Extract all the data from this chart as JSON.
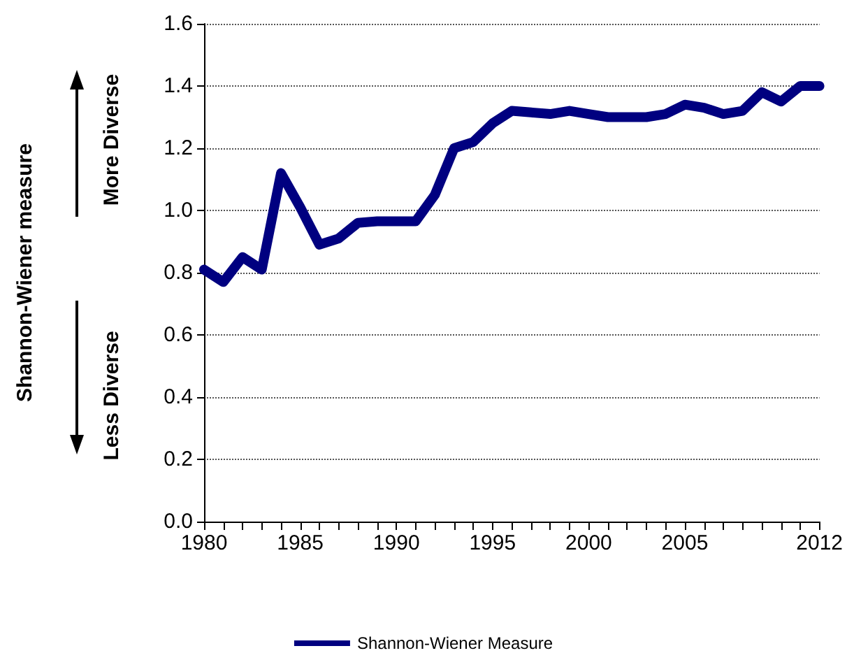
{
  "chart_data": {
    "type": "line",
    "annotations": [
      "Shannon-Wiener measure",
      "More Diverse",
      "Less Diverse"
    ],
    "x": [
      1980,
      1981,
      1982,
      1983,
      1984,
      1985,
      1986,
      1987,
      1988,
      1989,
      1990,
      1991,
      1992,
      1993,
      1994,
      1995,
      1996,
      1997,
      1998,
      1999,
      2000,
      2001,
      2002,
      2003,
      2004,
      2005,
      2006,
      2007,
      2008,
      2009,
      2010,
      2011,
      2012
    ],
    "series": [
      {
        "name": "Shannon-Wiener Measure",
        "color": "#000080",
        "values": [
          0.81,
          0.77,
          0.85,
          0.81,
          1.12,
          1.01,
          0.89,
          0.91,
          0.96,
          0.965,
          0.965,
          0.965,
          1.05,
          1.2,
          1.22,
          1.28,
          1.32,
          1.315,
          1.31,
          1.32,
          1.31,
          1.3,
          1.3,
          1.3,
          1.31,
          1.34,
          1.33,
          1.31,
          1.32,
          1.38,
          1.35,
          1.4,
          1.4
        ]
      }
    ],
    "xlim": [
      1980,
      2012
    ],
    "xticks": [
      1980,
      {
        "value": 1981,
        "label": null
      },
      {
        "value": 1982,
        "label": null
      },
      {
        "value": 1983,
        "label": null
      },
      {
        "value": 1984,
        "label": null
      },
      1985,
      {
        "value": 1986,
        "label": null
      },
      {
        "value": 1987,
        "label": null
      },
      {
        "value": 1988,
        "label": null
      },
      {
        "value": 1989,
        "label": null
      },
      1990,
      {
        "value": 1991,
        "label": null
      },
      {
        "value": 1992,
        "label": null
      },
      {
        "value": 1993,
        "label": null
      },
      {
        "value": 1994,
        "label": null
      },
      1995,
      {
        "value": 1996,
        "label": null
      },
      {
        "value": 1997,
        "label": null
      },
      {
        "value": 1998,
        "label": null
      },
      {
        "value": 1999,
        "label": null
      },
      2000,
      {
        "value": 2001,
        "label": null
      },
      {
        "value": 2002,
        "label": null
      },
      {
        "value": 2003,
        "label": null
      },
      {
        "value": 2004,
        "label": null
      },
      2005,
      {
        "value": 2006,
        "label": null
      },
      {
        "value": 2007,
        "label": null
      },
      {
        "value": 2008,
        "label": null
      },
      {
        "value": 2009,
        "label": null
      },
      {
        "value": 2010,
        "label": null
      },
      {
        "value": 2011,
        "label": null
      },
      2012
    ],
    "ylim": [
      0,
      1.6
    ],
    "yticks": [
      {
        "value": 0,
        "label": "0.0"
      },
      0.2,
      0.4,
      0.6,
      0.8,
      {
        "value": 1,
        "label": "1.0"
      },
      1.2,
      1.4,
      1.6
    ],
    "grid": "y",
    "legend": "bottom",
    "line_style": "solid"
  }
}
